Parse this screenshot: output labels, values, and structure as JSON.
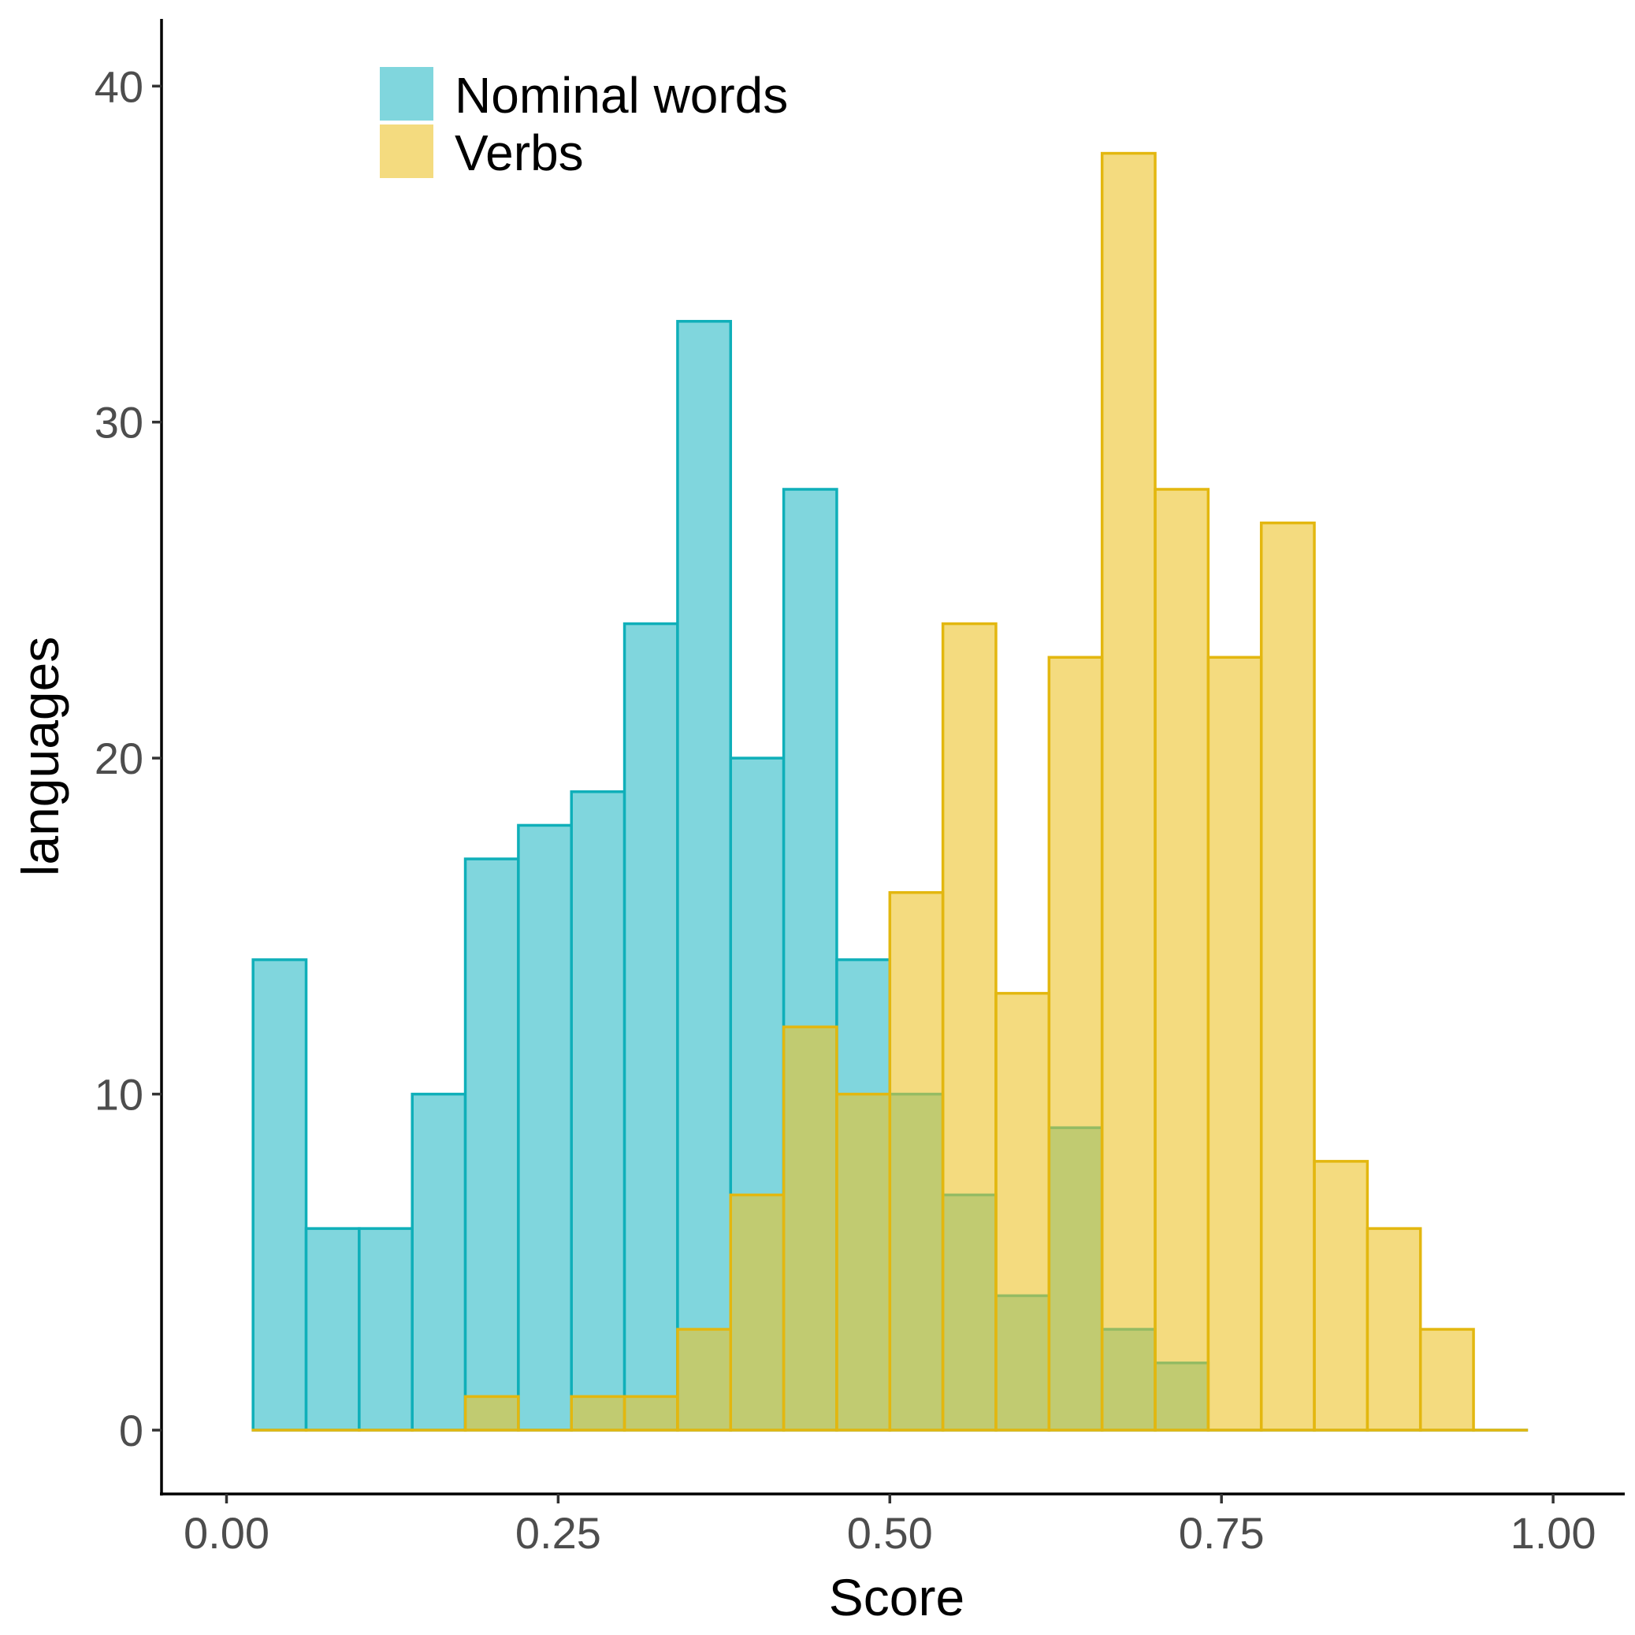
{
  "chart_data": {
    "type": "bar",
    "subtype": "overlapping-histogram",
    "xlabel": "Score",
    "ylabel": "languages",
    "xlim": [
      -0.049,
      1.054
    ],
    "ylim": [
      -1.9,
      42
    ],
    "xticks": [
      0.0,
      0.25,
      0.5,
      0.75,
      1.0
    ],
    "xtick_labels": [
      "0.00",
      "0.25",
      "0.50",
      "0.75",
      "1.00"
    ],
    "yticks": [
      0,
      10,
      20,
      30,
      40
    ],
    "ytick_labels": [
      "0",
      "10",
      "20",
      "30",
      "40"
    ],
    "grid": false,
    "legend_position": "top-left",
    "bin_width": 0.04,
    "bin_start": 0.02,
    "series": [
      {
        "name": "Nominal words",
        "fill": "#80D6DD",
        "stroke": "#0FAFB9",
        "values": [
          14,
          6,
          6,
          10,
          17,
          18,
          19,
          24,
          33,
          20,
          28,
          14,
          10,
          7,
          4,
          9,
          3,
          2,
          0,
          0,
          0,
          0,
          0,
          0
        ]
      },
      {
        "name": "Verbs",
        "fill": "#EDC32A",
        "fill_opacity": 0.6,
        "stroke": "#E3B70F",
        "values": [
          0,
          0,
          0,
          0,
          1,
          0,
          1,
          1,
          3,
          7,
          12,
          10,
          16,
          24,
          13,
          23,
          38,
          28,
          23,
          27,
          8,
          6,
          3,
          0
        ]
      }
    ]
  }
}
